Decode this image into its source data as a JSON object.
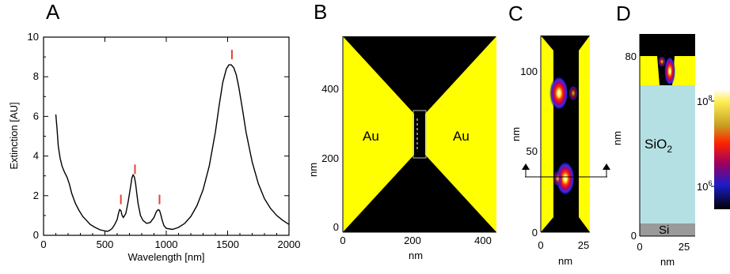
{
  "panels": {
    "A": {
      "label": "A"
    },
    "B": {
      "label": "B",
      "left_material": "Au",
      "right_material": "Au",
      "x_ticks": [
        "0",
        "200",
        "400"
      ],
      "y_ticks": [
        "0",
        "200",
        "400"
      ],
      "x_label": "nm",
      "y_label": "nm"
    },
    "C": {
      "label": "C",
      "x_ticks": [
        "0",
        "25"
      ],
      "y_ticks": [
        "0",
        "50",
        "100"
      ],
      "x_label": "nm",
      "y_label": "nm"
    },
    "D": {
      "label": "D",
      "x_ticks": [
        "0",
        "25"
      ],
      "y_ticks": [
        "0",
        "80"
      ],
      "x_label": "nm",
      "y_label": "nm",
      "layer_sio2": "SiO",
      "layer_sio2_sub": "2",
      "layer_si": "Si"
    },
    "colorbar": {
      "tick_top": "10",
      "tick_top_exp": "8",
      "tick_bottom": "10",
      "tick_bottom_exp": "6"
    }
  },
  "colors": {
    "gold": "#ffff00",
    "black": "#000000",
    "sio2": "#b4e0e4",
    "si": "#9a9a9a",
    "peak_marker": "#e8403a"
  },
  "chart_data": {
    "type": "line",
    "xlabel": "Wavelength [nm]",
    "ylabel": "Extinction [AU]",
    "xlim": [
      0,
      2000
    ],
    "ylim": [
      0,
      10
    ],
    "x_ticks": [
      0,
      500,
      1000,
      1500,
      2000
    ],
    "y_ticks": [
      0,
      2,
      4,
      6,
      8,
      10
    ],
    "grid": false,
    "series": [
      {
        "x": [
          100,
          110,
          120,
          135,
          150,
          170,
          190,
          210,
          230,
          260,
          290,
          320,
          350,
          380,
          420,
          460,
          500,
          520,
          540,
          560,
          580,
          600,
          610,
          620,
          630,
          640,
          650,
          670,
          690,
          710,
          720,
          730,
          740,
          750,
          760,
          770,
          790,
          810,
          840,
          870,
          900,
          920,
          935,
          945,
          955,
          965,
          980,
          1000,
          1050,
          1100,
          1150,
          1200,
          1250,
          1300,
          1350,
          1400,
          1430,
          1460,
          1490,
          1510,
          1530,
          1550,
          1570,
          1590,
          1620,
          1650,
          1700,
          1750,
          1800,
          1850,
          1900,
          1950,
          2000
        ],
        "y": [
          6.1,
          5.4,
          4.5,
          3.9,
          3.5,
          3.2,
          2.95,
          2.6,
          2.1,
          1.6,
          1.25,
          0.95,
          0.75,
          0.55,
          0.4,
          0.28,
          0.22,
          0.2,
          0.25,
          0.35,
          0.55,
          0.8,
          1.1,
          1.3,
          1.25,
          1.0,
          0.9,
          1.1,
          1.7,
          2.5,
          2.9,
          3.05,
          2.95,
          2.6,
          2.1,
          1.6,
          1.0,
          0.75,
          0.6,
          0.65,
          0.9,
          1.2,
          1.3,
          1.25,
          1.05,
          0.8,
          0.5,
          0.35,
          0.3,
          0.4,
          0.6,
          0.95,
          1.5,
          2.3,
          3.5,
          5.2,
          6.5,
          7.7,
          8.4,
          8.6,
          8.6,
          8.45,
          8.1,
          7.5,
          6.4,
          5.2,
          3.7,
          2.6,
          1.85,
          1.35,
          1.0,
          0.75,
          0.55
        ]
      }
    ],
    "peak_markers_x": [
      630,
      745,
      945,
      1535
    ]
  }
}
